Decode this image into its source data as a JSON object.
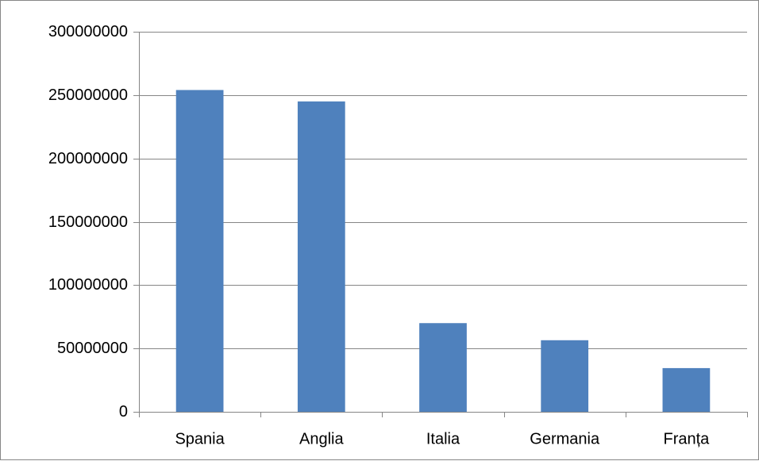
{
  "chart_data": {
    "type": "bar",
    "categories": [
      "Spania",
      "Anglia",
      "Italia",
      "Germania",
      "Franța"
    ],
    "values": [
      254000000,
      245000000,
      70000000,
      56500000,
      34500000
    ],
    "ylim": [
      0,
      300000000
    ],
    "yticks": [
      0,
      50000000,
      100000000,
      150000000,
      200000000,
      250000000,
      300000000
    ],
    "ytick_labels": [
      "0",
      "50000000",
      "100000000",
      "150000000",
      "200000000",
      "250000000",
      "300000000"
    ],
    "title": "",
    "xlabel": "",
    "ylabel": "",
    "grid": true,
    "legend": "none",
    "bar_color": "#4F81BD"
  }
}
